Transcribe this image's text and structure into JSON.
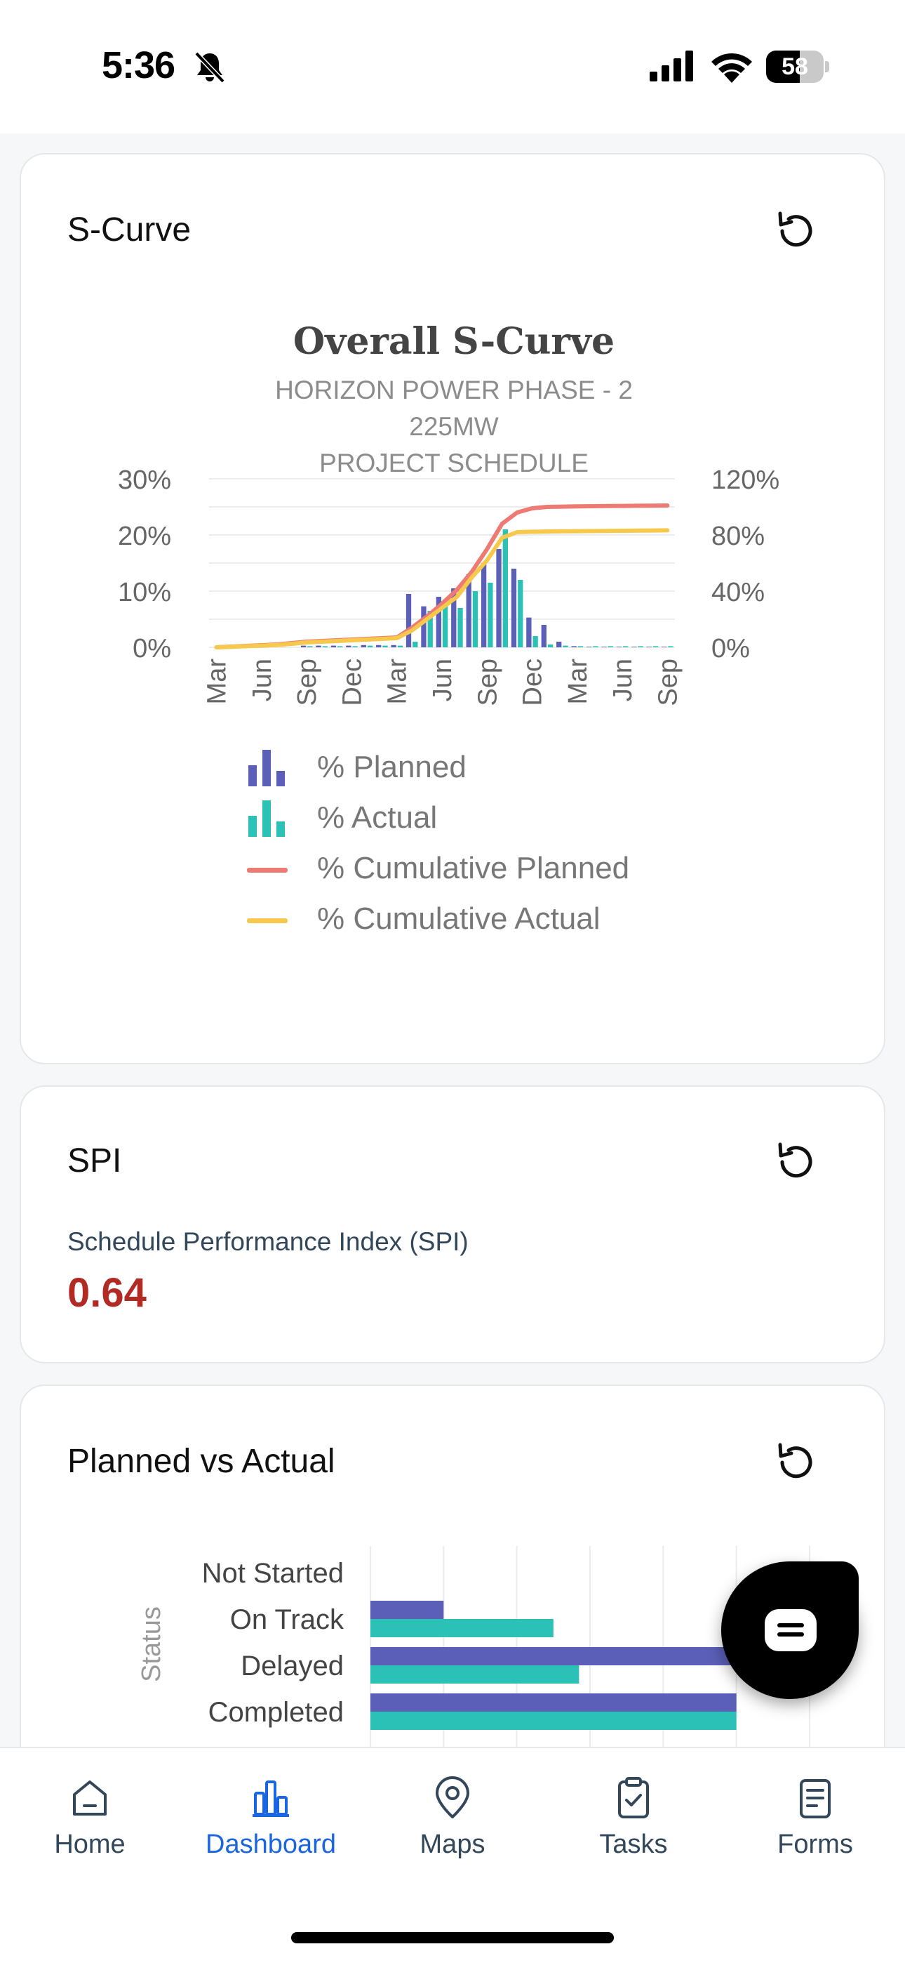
{
  "status_bar": {
    "time": "5:36",
    "battery_level": "58",
    "battery_fraction": 0.58
  },
  "scurve_card": {
    "title": "S-Curve",
    "chart_data": {
      "type": "bar+line",
      "title": "Overall S-Curve",
      "subtitle_line1": "HORIZON POWER PHASE - 2 225MW",
      "subtitle_line2": "PROJECT SCHEDULE",
      "x_ticks": [
        "Mar",
        "Jun",
        "Sep",
        "Dec",
        "Mar",
        "Jun",
        "Sep",
        "Dec",
        "Mar",
        "Jun",
        "Sep"
      ],
      "y_left_ticks": [
        "30%",
        "20%",
        "10%",
        "0%"
      ],
      "y_right_ticks": [
        "120%",
        "80%",
        "40%",
        "0%"
      ],
      "y_left_range": [
        0,
        30
      ],
      "y_right_range": [
        0,
        120
      ],
      "months": 31,
      "series": [
        {
          "name": "% Planned",
          "kind": "bar",
          "axis": "left",
          "color": "#5b5fb8",
          "values": [
            0,
            0,
            0,
            0,
            0,
            0,
            0.3,
            0.3,
            0.3,
            0.3,
            0.4,
            0.4,
            0.4,
            9.5,
            7.3,
            9,
            10.5,
            13,
            15,
            17.5,
            14,
            5.3,
            4,
            1,
            0.2,
            0.1,
            0.1,
            0.1,
            0.1,
            0.1,
            0.1
          ]
        },
        {
          "name": "% Actual",
          "kind": "bar",
          "axis": "left",
          "color": "#2cc1b6",
          "values": [
            0,
            0,
            0,
            0,
            0,
            0,
            0.2,
            0.2,
            0.2,
            0.2,
            0.3,
            0.3,
            0.3,
            1,
            6.5,
            8.5,
            7,
            10,
            11.5,
            21,
            12,
            2,
            0.5,
            0.3,
            0.2,
            0.2,
            0.2,
            0.2,
            0.2,
            0.2,
            0.2
          ]
        },
        {
          "name": "% Cumulative Planned",
          "kind": "line",
          "axis": "right",
          "color": "#ee7a74",
          "values": [
            0,
            0.5,
            1,
            1.5,
            2,
            3,
            4,
            4.5,
            5,
            5.5,
            6,
            6.5,
            7,
            14,
            22,
            31,
            41,
            54,
            70,
            88,
            96,
            99,
            100,
            100.2,
            100.4,
            100.5,
            100.6,
            100.7,
            100.8,
            100.9,
            101
          ]
        },
        {
          "name": "% Cumulative Actual",
          "kind": "line",
          "axis": "right",
          "color": "#f6c84b",
          "values": [
            0,
            0.4,
            0.8,
            1.2,
            1.6,
            2.5,
            3.5,
            4,
            4.5,
            5,
            5.5,
            6,
            6.5,
            12,
            20,
            28,
            36,
            50,
            62,
            78,
            82,
            82.3,
            82.5,
            82.6,
            82.7,
            82.8,
            82.9,
            83,
            83.1,
            83.2,
            83.3
          ]
        }
      ],
      "grid": true,
      "legend_position": "bottom"
    }
  },
  "spi_card": {
    "title": "SPI",
    "label": "Schedule Performance Index (SPI)",
    "value": "0.64"
  },
  "pva_card": {
    "title": "Planned vs Actual",
    "chart_data": {
      "type": "bar",
      "orientation": "horizontal",
      "ylabel": "Status",
      "categories": [
        "Not Started",
        "On Track",
        "Delayed",
        "Completed"
      ],
      "series": [
        {
          "color": "#5b5fb8",
          "values": [
            0,
            2,
            10,
            10
          ]
        },
        {
          "color": "#2cc1b6",
          "values": [
            0,
            5,
            5.7,
            10
          ]
        }
      ],
      "xlim": [
        0,
        12
      ]
    }
  },
  "tabbar": {
    "items": [
      {
        "label": "Home",
        "icon": "home-icon"
      },
      {
        "label": "Dashboard",
        "icon": "dashboard-icon"
      },
      {
        "label": "Maps",
        "icon": "map-pin-icon"
      },
      {
        "label": "Tasks",
        "icon": "tasks-icon"
      },
      {
        "label": "Forms",
        "icon": "forms-icon"
      }
    ],
    "active_color": "#1a66e0",
    "inactive_color": "#33475b"
  }
}
